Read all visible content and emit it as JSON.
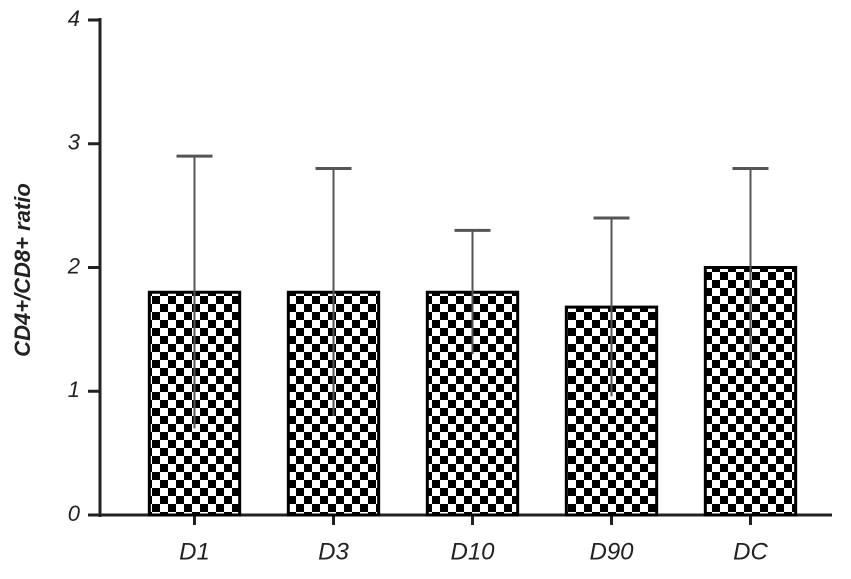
{
  "chart_data": {
    "type": "bar",
    "y_label": "CD4+/CD8+ ratio",
    "categories": [
      "D1",
      "D3",
      "D10",
      "D90",
      "DC"
    ],
    "values": [
      1.8,
      1.8,
      1.8,
      1.68,
      2.0
    ],
    "errors": [
      1.1,
      1.0,
      0.5,
      0.72,
      0.8
    ],
    "color": "#000000",
    "ylim": [
      0,
      4
    ],
    "yticks": [
      0,
      1,
      2,
      3,
      4
    ],
    "grid": false
  }
}
